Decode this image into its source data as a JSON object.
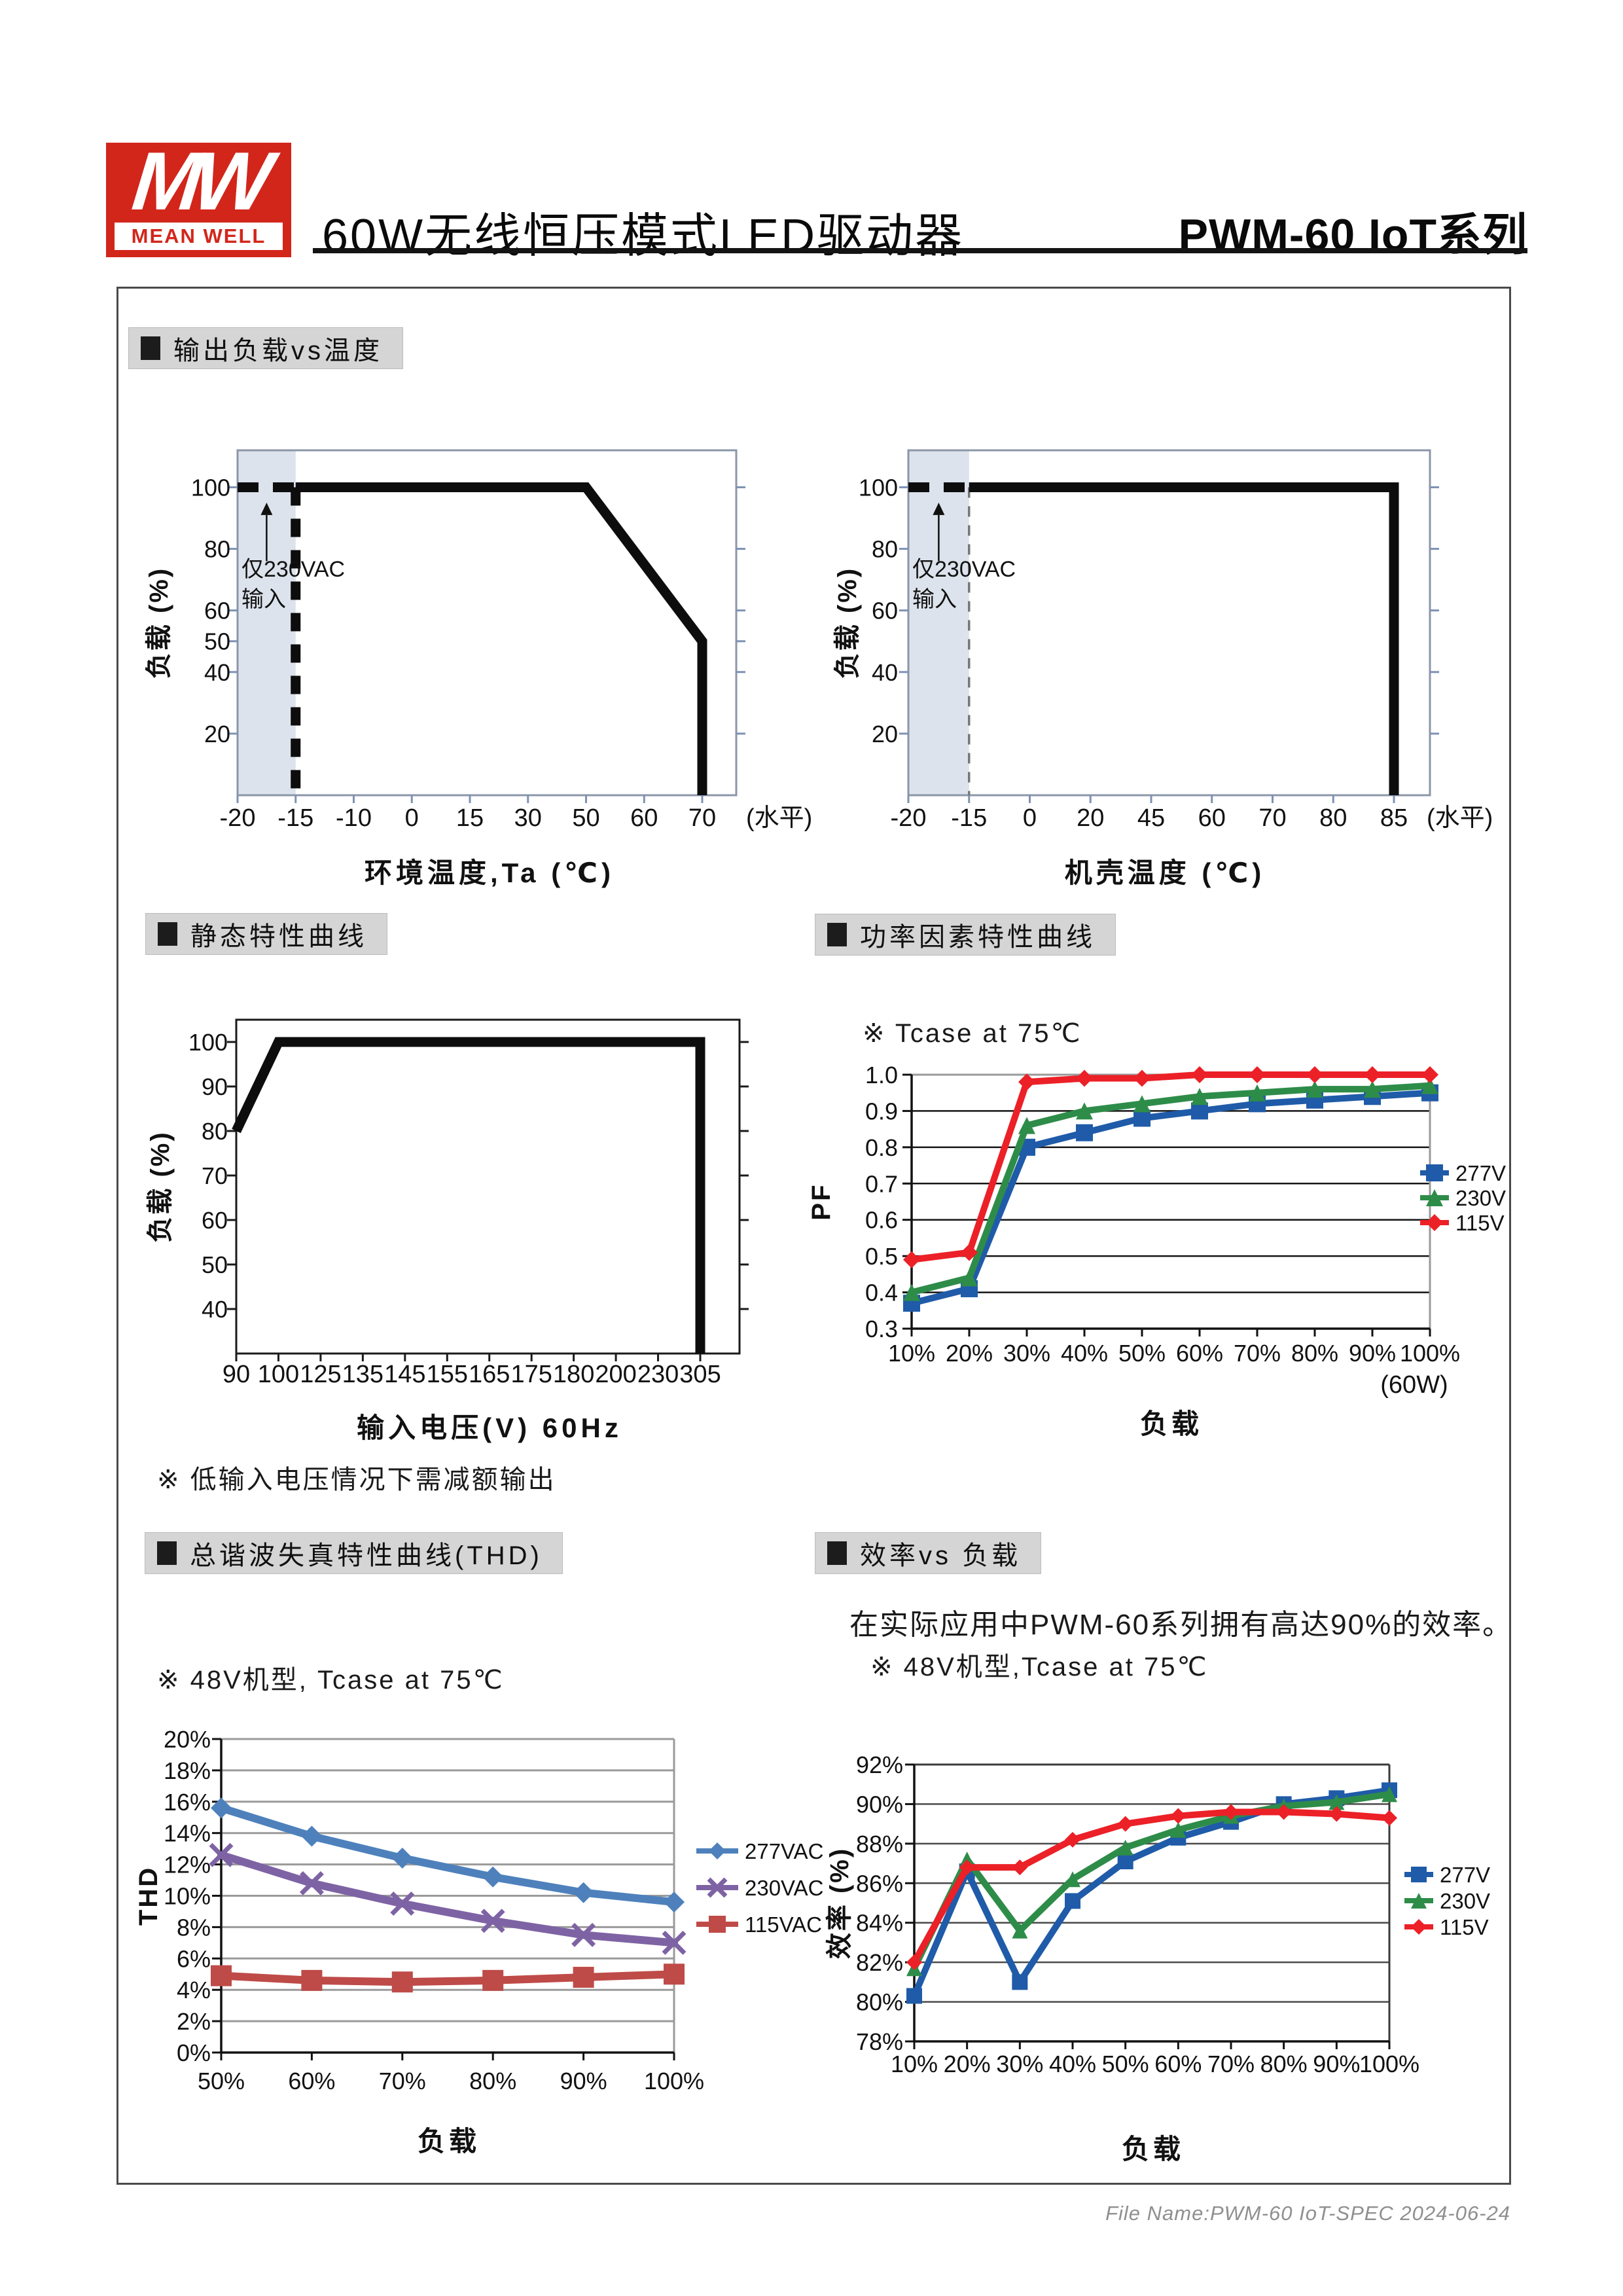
{
  "header": {
    "logo_monogram": "MW",
    "logo_brand": "MEAN WELL",
    "title": "60W无线恒压模式LED驱动器",
    "series": "PWM-60 IoT系列"
  },
  "sections": {
    "derating": {
      "title": "输出负载vs温度"
    },
    "static": {
      "title": "静态特性曲线",
      "note": "※ 低输入电压情况下需减额输出"
    },
    "pf": {
      "title": "功率因素特性曲线",
      "note": "※ Tcase at 75℃"
    },
    "thd": {
      "title": "总谐波失真特性曲线(THD)",
      "note": "※ 48V机型, Tcase at 75℃"
    },
    "eff": {
      "title": "效率vs 负载",
      "desc": "在实际应用中PWM-60系列拥有高达90%的效率。",
      "note": "※ 48V机型,Tcase at 75℃"
    }
  },
  "footer": {
    "file_name": "File Name:PWM-60 IoT-SPEC  2024-06-24"
  },
  "colors": {
    "brand_red": "#D2261B",
    "shade": "#dde3ec",
    "bar_bg": "#d5d5d5",
    "pf_blue": "#1F5BA8",
    "pf_green": "#2E8C49",
    "pf_red": "#EC2027",
    "thd_blue": "#4E81BC",
    "thd_purple": "#7E63A4",
    "thd_red": "#BE4B48"
  },
  "chart_data": [
    {
      "id": "ambient_derating",
      "type": "derating",
      "title": "输出负载vs温度(环境)",
      "xlabel": "环境温度,Ta (℃)",
      "ylabel": "负载 (%)",
      "x_categories": [
        "-20",
        "-15",
        "-10",
        "0",
        "15",
        "30",
        "50",
        "60",
        "70"
      ],
      "x_unit": "(水平)",
      "ylim": [
        0,
        112
      ],
      "yticks": [
        20,
        40,
        50,
        60,
        80,
        100
      ],
      "line": [
        [
          1,
          100
        ],
        [
          6,
          100
        ],
        [
          8,
          50
        ],
        [
          8,
          0
        ]
      ],
      "dashed": [
        [
          0,
          100
        ],
        [
          1,
          100
        ]
      ],
      "vline": {
        "x": 1,
        "style": "thick"
      },
      "shade": [
        0,
        1
      ],
      "annotation": [
        "仅230VAC",
        "输入"
      ]
    },
    {
      "id": "case_derating",
      "type": "derating",
      "title": "输出负载vs温度(机壳)",
      "xlabel": "机壳温度 (℃)",
      "ylabel": "负载 (%)",
      "x_categories": [
        "-20",
        "-15",
        "0",
        "20",
        "45",
        "60",
        "70",
        "80",
        "85"
      ],
      "x_unit": "(水平)",
      "ylim": [
        0,
        112
      ],
      "yticks": [
        20,
        40,
        60,
        80,
        100
      ],
      "line": [
        [
          1,
          100
        ],
        [
          8,
          100
        ],
        [
          8,
          0
        ]
      ],
      "dashed": [
        [
          0,
          100
        ],
        [
          1,
          100
        ]
      ],
      "vline": {
        "x": 1,
        "style": "thin"
      },
      "shade": [
        0,
        1
      ],
      "annotation": [
        "仅230VAC",
        "输入"
      ]
    },
    {
      "id": "static_line",
      "type": "derating",
      "title": "静态特性曲线",
      "xlabel": "输入电压(V) 60Hz",
      "ylabel": "负载 (%)",
      "x_categories": [
        "90",
        "100",
        "125",
        "135",
        "145",
        "155",
        "165",
        "175",
        "180",
        "200",
        "230",
        "305"
      ],
      "ylim": [
        30,
        105
      ],
      "yticks": [
        40,
        50,
        60,
        70,
        80,
        90,
        100
      ],
      "line": [
        [
          0,
          80
        ],
        [
          1,
          100
        ],
        [
          11,
          100
        ],
        [
          11,
          30
        ]
      ]
    },
    {
      "id": "pf",
      "type": "line",
      "title": "功率因素特性曲线",
      "xlabel": "负载",
      "ylabel": "PF",
      "x_categories": [
        "10%",
        "20%",
        "30%",
        "40%",
        "50%",
        "60%",
        "70%",
        "80%",
        "90%",
        "100%"
      ],
      "x_unit_under": "(60W)",
      "ylim": [
        0.3,
        1.0
      ],
      "yticks": [
        0.3,
        0.4,
        0.5,
        0.6,
        0.7,
        0.8,
        0.9,
        1.0
      ],
      "ytick_labels": [
        "0.3",
        "0.4",
        "0.5",
        "0.6",
        "0.7",
        "0.8",
        "0.9",
        "1.0"
      ],
      "grid": true,
      "legend_position": "right",
      "series": [
        {
          "name": "277V",
          "color": "#1F5BA8",
          "marker": "square",
          "values": [
            0.37,
            0.41,
            0.8,
            0.84,
            0.88,
            0.9,
            0.92,
            0.93,
            0.94,
            0.95
          ]
        },
        {
          "name": "230V",
          "color": "#2E8C49",
          "marker": "triangle",
          "values": [
            0.4,
            0.44,
            0.86,
            0.9,
            0.92,
            0.94,
            0.95,
            0.96,
            0.96,
            0.97
          ]
        },
        {
          "name": "115V",
          "color": "#EC2027",
          "marker": "diamond",
          "values": [
            0.49,
            0.51,
            0.98,
            0.99,
            0.99,
            1.0,
            1.0,
            1.0,
            1.0,
            1.0
          ]
        }
      ]
    },
    {
      "id": "thd",
      "type": "line",
      "title": "总谐波失真特性曲线(THD)",
      "xlabel": "负载",
      "ylabel": "THD",
      "x_categories": [
        "50%",
        "60%",
        "70%",
        "80%",
        "90%",
        "100%"
      ],
      "ylim": [
        0,
        20
      ],
      "yticks": [
        0,
        2,
        4,
        6,
        8,
        10,
        12,
        14,
        16,
        18,
        20
      ],
      "ytick_labels": [
        "0%",
        "2%",
        "4%",
        "6%",
        "8%",
        "10%",
        "12%",
        "14%",
        "16%",
        "18%",
        "20%"
      ],
      "grid": true,
      "legend_position": "right",
      "series": [
        {
          "name": "277VAC",
          "color": "#4E81BC",
          "marker": "diamond",
          "values": [
            15.6,
            13.8,
            12.4,
            11.2,
            10.2,
            9.6
          ]
        },
        {
          "name": "230VAC",
          "color": "#7E63A4",
          "marker": "x",
          "values": [
            12.6,
            10.8,
            9.5,
            8.4,
            7.5,
            7.0
          ]
        },
        {
          "name": "115VAC",
          "color": "#BE4B48",
          "marker": "square",
          "values": [
            4.9,
            4.6,
            4.5,
            4.6,
            4.8,
            5.0
          ]
        }
      ]
    },
    {
      "id": "eff",
      "type": "line",
      "title": "效率vs负载",
      "xlabel": "负载",
      "ylabel": "效率 (%)",
      "x_categories": [
        "10%",
        "20%",
        "30%",
        "40%",
        "50%",
        "60%",
        "70%",
        "80%",
        "90%",
        "100%"
      ],
      "ylim": [
        78,
        92
      ],
      "yticks": [
        78,
        80,
        82,
        84,
        86,
        88,
        90,
        92
      ],
      "ytick_labels": [
        "78%",
        "80%",
        "82%",
        "84%",
        "86%",
        "88%",
        "90%",
        "92%"
      ],
      "grid": true,
      "legend_position": "right",
      "series": [
        {
          "name": "277V",
          "color": "#1F5BA8",
          "marker": "square",
          "values": [
            80.3,
            86.6,
            81.0,
            85.1,
            87.1,
            88.3,
            89.1,
            90.0,
            90.3,
            90.7
          ]
        },
        {
          "name": "230V",
          "color": "#2E8C49",
          "marker": "triangle",
          "values": [
            81.7,
            87.2,
            83.6,
            86.2,
            87.8,
            88.7,
            89.4,
            89.9,
            90.1,
            90.5
          ]
        },
        {
          "name": "115V",
          "color": "#EC2027",
          "marker": "diamond",
          "values": [
            82.0,
            86.8,
            86.8,
            88.2,
            89.0,
            89.4,
            89.6,
            89.6,
            89.5,
            89.3
          ]
        }
      ]
    }
  ]
}
